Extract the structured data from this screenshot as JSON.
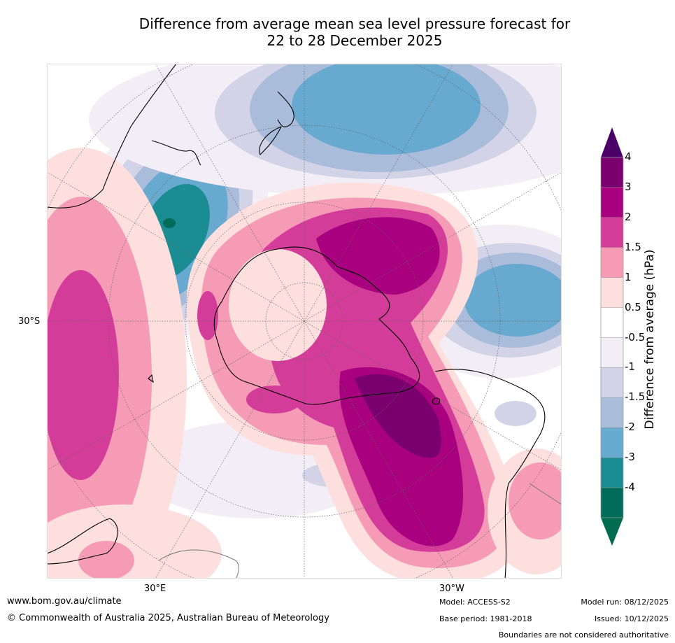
{
  "title": {
    "line1": "Difference from average mean sea level pressure forecast for",
    "line2": "22 to 28 December 2025"
  },
  "map": {
    "lat_label": "30°S",
    "lon_labels": [
      "30°E",
      "30°W"
    ]
  },
  "colorbar": {
    "title": "Difference from average (hPa)",
    "ticks": [
      "4",
      "3",
      "2",
      "1.5",
      "1",
      "0.5",
      "-0.5",
      "-1",
      "-1.5",
      "-2",
      "-3",
      "-4"
    ],
    "colors": [
      "#7a0070",
      "#a8007f",
      "#d43c9a",
      "#f59bb6",
      "#fde0de",
      "#ffffff",
      "#f3eef6",
      "#d2d3e7",
      "#a9bddb",
      "#67a9cf",
      "#1b8c91",
      "#016c59"
    ],
    "top_arrow_color": "#4b0068",
    "bottom_arrow_color": "#006b4e"
  },
  "footer": {
    "url": "www.bom.gov.au/climate",
    "copyright": "© Commonwealth of Australia 2025, Australian Bureau of Meteorology",
    "model": "Model: ACCESS-S2",
    "base_period": "Base period: 1981-2018",
    "model_run": "Model run: 08/12/2025",
    "issued": "Issued: 10/12/2025",
    "disclaimer": "Boundaries are not considered authoritative"
  }
}
